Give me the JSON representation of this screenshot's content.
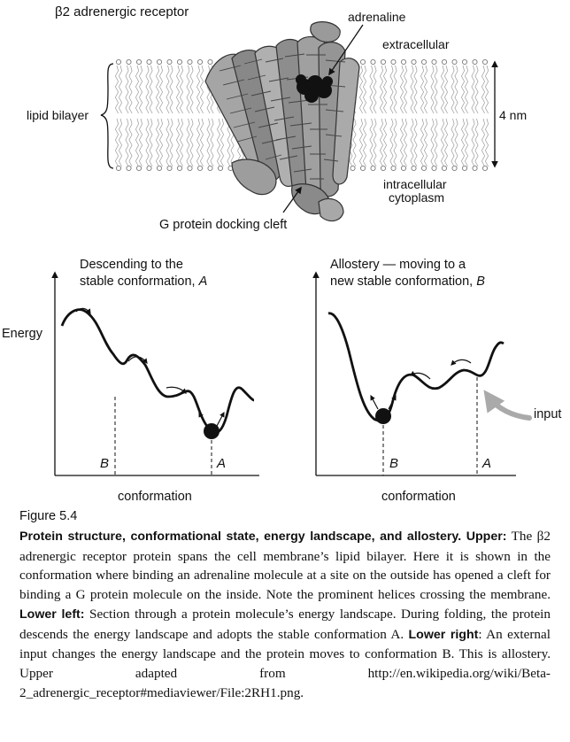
{
  "upper": {
    "title": "β2 adrenergic receptor",
    "label_adrenaline": "adrenaline",
    "label_extracellular": "extracellular",
    "label_lipid_bilayer": "lipid bilayer",
    "label_4nm": "4 nm",
    "label_intracellular_1": "intracellular",
    "label_intracellular_2": "cytoplasm",
    "label_docking": "G protein docking cleft"
  },
  "lower_left": {
    "title_line1": "Descending to the",
    "title_line2_text": "stable conformation, ",
    "title_line2_italic": "A",
    "ylabel": "Energy",
    "xlabel": "conformation",
    "marker_b": "B",
    "marker_a": "A"
  },
  "lower_right": {
    "title_line1": "Allostery — moving to a",
    "title_line2_text": "new stable conformation, ",
    "title_line2_italic": "B",
    "xlabel": "conformation",
    "marker_b": "B",
    "marker_a": "A",
    "input_label": "input"
  },
  "caption": {
    "figure_number": "Figure 5.4",
    "bold_lead": "Protein structure, conformational state, energy landscape, and allostery. Upper:",
    "text_1": " The β2 adrenergic receptor protein spans the cell membrane’s lipid bilayer. Here it is shown in the conformation where binding an adrenaline molecule at a site on the outside has opened a cleft for binding a G protein molecule on the inside. Note the prominent helices crossing the membrane. ",
    "bold_lower_left": "Lower left:",
    "text_2": " Section through a protein molecule’s energy landscape. During folding, the protein descends the energy landscape and adopts the stable conformation A. ",
    "bold_lower_right": "Lower right",
    "text_3": ": An external input changes the energy landscape and the protein moves to conformation B. This is allostery. Upper adapted from http://en.wikipedia.org/wiki/Beta-2_adrenergic_receptor#mediaviewer/File:2RH1.png."
  }
}
